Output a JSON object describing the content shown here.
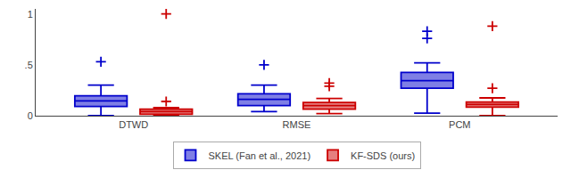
{
  "chart_data": {
    "type": "box",
    "categories": [
      "DTWD",
      "RMSE",
      "PCM"
    ],
    "series": [
      {
        "name": "SKEL (Fan et al., 2021)",
        "color": "#0000cc",
        "marker": "plus",
        "boxes": [
          {
            "whislo": 0.0,
            "q1": 0.09,
            "med": 0.145,
            "q3": 0.195,
            "whishi": 0.3,
            "fliers": [
              0.53
            ]
          },
          {
            "whislo": 0.04,
            "q1": 0.1,
            "med": 0.16,
            "q3": 0.215,
            "whishi": 0.3,
            "fliers": [
              0.5
            ]
          },
          {
            "whislo": 0.025,
            "q1": 0.27,
            "med": 0.345,
            "q3": 0.425,
            "whishi": 0.52,
            "fliers": [
              0.76,
              0.83
            ]
          }
        ]
      },
      {
        "name": "KF-SDS (ours)",
        "color": "#cc0000",
        "marker": "plus",
        "boxes": [
          {
            "whislo": 0.0,
            "q1": 0.015,
            "med": 0.04,
            "q3": 0.065,
            "whishi": 0.08,
            "fliers": [
              0.14,
              1.0
            ]
          },
          {
            "whislo": 0.02,
            "q1": 0.065,
            "med": 0.1,
            "q3": 0.13,
            "whishi": 0.17,
            "fliers": [
              0.29,
              0.32
            ]
          },
          {
            "whislo": 0.0,
            "q1": 0.085,
            "med": 0.11,
            "q3": 0.135,
            "whishi": 0.175,
            "fliers": [
              0.27,
              0.88
            ]
          }
        ]
      }
    ],
    "ylim": [
      0,
      1.05
    ],
    "yticks": [
      0,
      {
        "value": 0.5,
        "label": ".5"
      },
      1
    ],
    "grid": false,
    "legend": "bottom"
  }
}
